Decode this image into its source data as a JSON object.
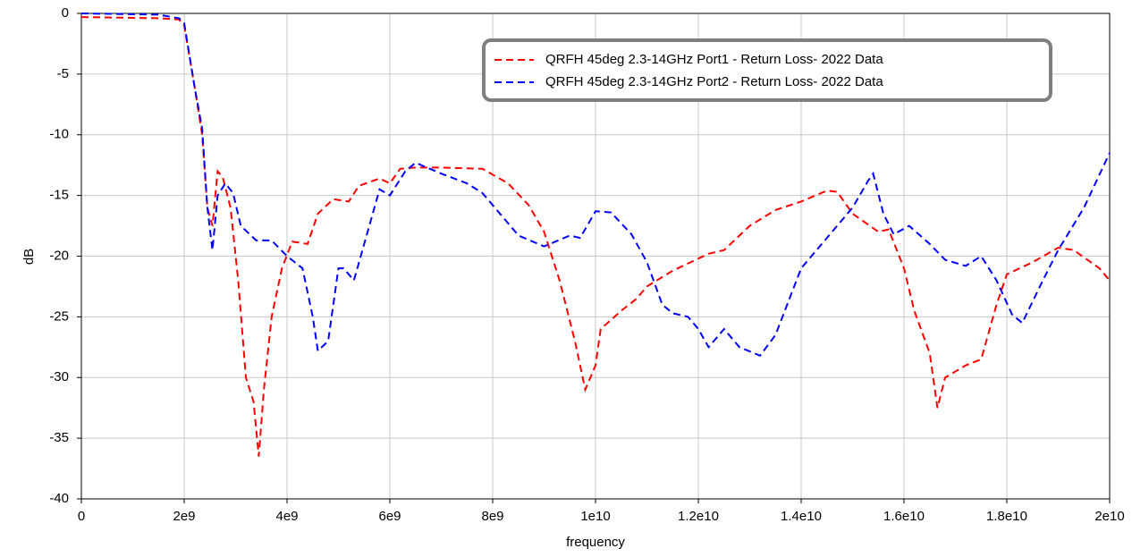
{
  "chart_data": {
    "type": "line",
    "xlabel": "frequency",
    "ylabel": "dB",
    "xlim": [
      0,
      20000000000.0
    ],
    "ylim": [
      -40,
      0
    ],
    "xticks": [
      0,
      {
        "value": 2000000000.0,
        "label": "2e9"
      },
      {
        "value": 4000000000.0,
        "label": "4e9"
      },
      {
        "value": 6000000000.0,
        "label": "6e9"
      },
      {
        "value": 8000000000.0,
        "label": "8e9"
      },
      {
        "value": 10000000000.0,
        "label": "1e10"
      },
      {
        "value": 12000000000.0,
        "label": "1.2e10"
      },
      {
        "value": 14000000000.0,
        "label": "1.4e10"
      },
      {
        "value": 16000000000.0,
        "label": "1.6e10"
      },
      {
        "value": 18000000000.0,
        "label": "1.8e10"
      },
      {
        "value": 20000000000.0,
        "label": "2e10"
      }
    ],
    "yticks": [
      0,
      -5,
      -10,
      -15,
      -20,
      -25,
      -30,
      -35,
      -40
    ],
    "grid": true,
    "legend": "upper right",
    "series": [
      {
        "name": "QRFH 45deg 2.3-14GHz Port1 - Return Loss- 2022 Data",
        "color": "#ff0000",
        "x": [
          0,
          1500000000.0,
          1900000000.0,
          2000000000.0,
          2200000000.0,
          2350000000.0,
          2450000000.0,
          2550000000.0,
          2650000000.0,
          2750000000.0,
          2900000000.0,
          3050000000.0,
          3200000000.0,
          3350000000.0,
          3450000000.0,
          3550000000.0,
          3700000000.0,
          3900000000.0,
          4100000000.0,
          4400000000.0,
          4600000000.0,
          4900000000.0,
          5200000000.0,
          5400000000.0,
          5800000000.0,
          6000000000.0,
          6200000000.0,
          6500000000.0,
          7000000000.0,
          7800000000.0,
          8300000000.0,
          8700000000.0,
          9000000000.0,
          9300000000.0,
          9600000000.0,
          9800000000.0,
          10000000000.0,
          10100000000.0,
          10500000000.0,
          10800000000.0,
          11000000000.0,
          11500000000.0,
          12200000000.0,
          12500000000.0,
          13000000000.0,
          13500000000.0,
          14000000000.0,
          14500000000.0,
          14700000000.0,
          15000000000.0,
          15500000000.0,
          15700000000.0,
          16000000000.0,
          16200000000.0,
          16500000000.0,
          16650000000.0,
          16800000000.0,
          17200000000.0,
          17500000000.0,
          17800000000.0,
          18000000000.0,
          18500000000.0,
          19000000000.0,
          19300000000.0,
          19800000000.0,
          20000000000.0
        ],
        "values": [
          -0.3,
          -0.4,
          -0.5,
          -1,
          -6,
          -10,
          -16,
          -17.5,
          -13,
          -13.5,
          -16,
          -22,
          -30,
          -32,
          -36.5,
          -31,
          -25,
          -21,
          -18.8,
          -19,
          -16.5,
          -15.3,
          -15.5,
          -14.2,
          -13.6,
          -14,
          -12.8,
          -12.7,
          -12.7,
          -12.8,
          -14,
          -15.8,
          -18,
          -22,
          -27,
          -31,
          -29,
          -26,
          -24.5,
          -23.5,
          -22.5,
          -21.2,
          -19.8,
          -19.5,
          -17.5,
          -16.2,
          -15.5,
          -14.6,
          -14.7,
          -16.5,
          -18,
          -17.8,
          -21,
          -24.5,
          -28,
          -32.5,
          -30,
          -29,
          -28.5,
          -24,
          -21.5,
          -20.5,
          -19.3,
          -19.5,
          -21,
          -22
        ]
      },
      {
        "name": "QRFH 45deg 2.3-14GHz Port2 - Return Loss- 2022 Data",
        "color": "#0000ff",
        "x": [
          0,
          1500000000.0,
          1900000000.0,
          2000000000.0,
          2200000000.0,
          2350000000.0,
          2450000000.0,
          2550000000.0,
          2650000000.0,
          2800000000.0,
          2950000000.0,
          3100000000.0,
          3400000000.0,
          3700000000.0,
          4000000000.0,
          4300000000.0,
          4500000000.0,
          4600000000.0,
          4800000000.0,
          5000000000.0,
          5100000000.0,
          5300000000.0,
          5500000000.0,
          5800000000.0,
          6000000000.0,
          6300000000.0,
          6500000000.0,
          7000000000.0,
          7500000000.0,
          7800000000.0,
          8300000000.0,
          8500000000.0,
          9000000000.0,
          9500000000.0,
          9700000000.0,
          10000000000.0,
          10300000000.0,
          10700000000.0,
          11000000000.0,
          11300000000.0,
          11500000000.0,
          11800000000.0,
          12000000000.0,
          12200000000.0,
          12500000000.0,
          12800000000.0,
          13200000000.0,
          13500000000.0,
          14000000000.0,
          14500000000.0,
          15000000000.0,
          15300000000.0,
          15400000000.0,
          15600000000.0,
          15800000000.0,
          16100000000.0,
          16500000000.0,
          16800000000.0,
          17200000000.0,
          17500000000.0,
          17800000000.0,
          18100000000.0,
          18300000000.0,
          18700000000.0,
          19000000000.0,
          19500000000.0,
          20000000000.0
        ],
        "values": [
          0,
          -0.1,
          -0.4,
          -0.8,
          -6,
          -9.5,
          -16,
          -19.5,
          -15,
          -14,
          -14.8,
          -17.5,
          -18.7,
          -18.7,
          -20,
          -21,
          -25,
          -27.8,
          -27,
          -21,
          -21,
          -22,
          -19,
          -14.5,
          -15,
          -13,
          -12.3,
          -13.2,
          -14,
          -14.8,
          -17.3,
          -18.3,
          -19.2,
          -18.3,
          -18.5,
          -16.3,
          -16.4,
          -18.2,
          -20.5,
          -24,
          -24.7,
          -25,
          -26,
          -27.5,
          -26,
          -27.5,
          -28.2,
          -26.5,
          -21,
          -18.5,
          -16,
          -13.8,
          -13.2,
          -16.5,
          -18.2,
          -17.5,
          -19,
          -20.3,
          -20.8,
          -20,
          -22,
          -24.8,
          -25.5,
          -22,
          -19.5,
          -16,
          -11.5
        ]
      }
    ]
  }
}
